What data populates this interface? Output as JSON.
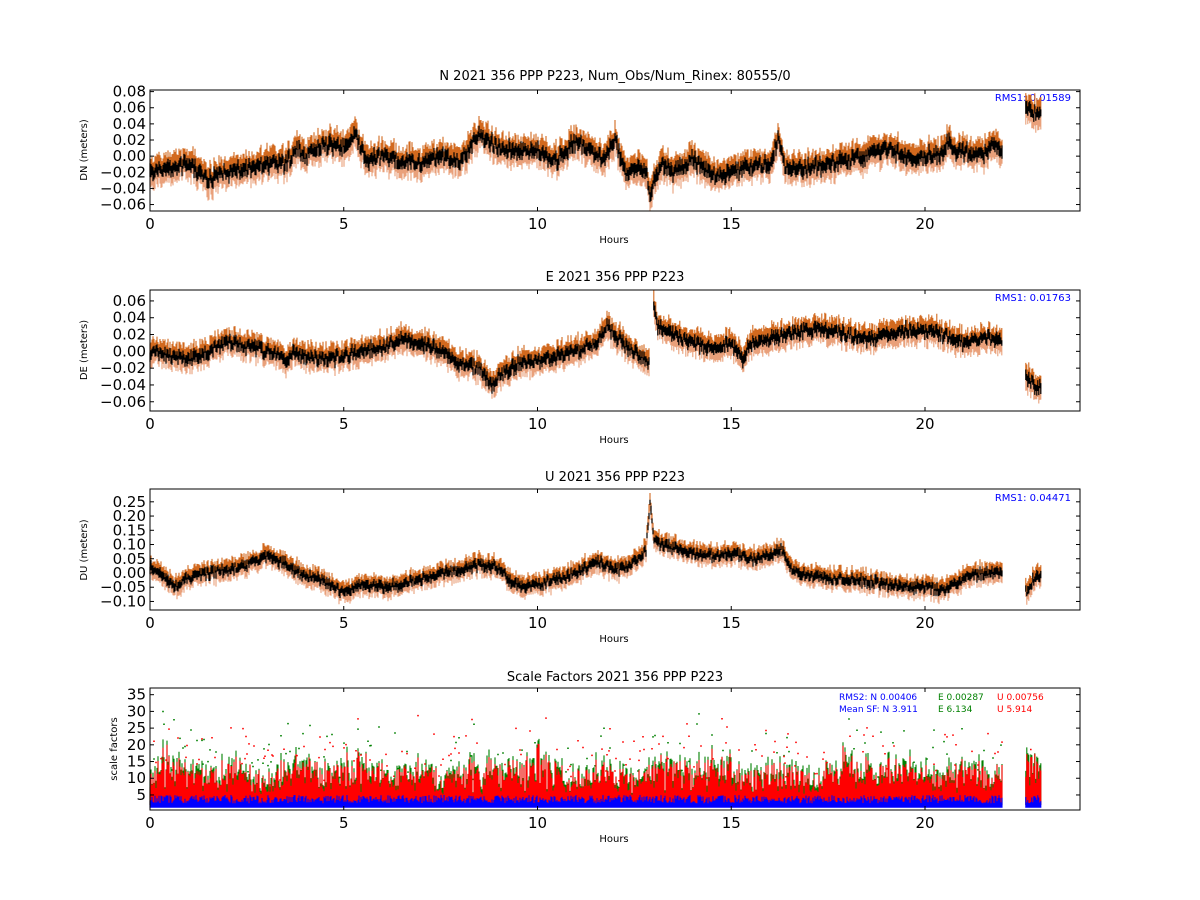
{
  "colors": {
    "sigma_outer": "#d2691e",
    "sigma_inner": "#e9a07a",
    "position": "#000000",
    "rms_text": "#0000ff",
    "sf_N": "#0000ff",
    "sf_E": "#008000",
    "sf_U": "#ff0000"
  },
  "chart_data": [
    {
      "type": "scatter",
      "title": "N 2021 356 PPP  P223, Num_Obs/Num_Rinex: 80555/0",
      "xlabel": "Hours",
      "ylabel": "DN (meters)",
      "xlim": [
        0,
        24
      ],
      "ylim": [
        -0.068,
        0.082
      ],
      "xticks": [
        0,
        5,
        10,
        15,
        20
      ],
      "xtick_labels": [
        "0",
        "5",
        "10",
        "15",
        "20"
      ],
      "yticks": [
        -0.06,
        -0.04,
        -0.02,
        0.0,
        0.02,
        0.04,
        0.06,
        0.08
      ],
      "ytick_labels": [
        "−0.06",
        "−0.04",
        "−0.02",
        "0.00",
        "0.02",
        "0.04",
        "0.06",
        "0.08"
      ],
      "annotation": "RMS1:  0.01589",
      "band_half_width": 0.018,
      "noise": 0.006,
      "segments": [
        {
          "x": [
            0.0,
            0.5,
            1.0,
            1.5,
            2.0,
            2.5,
            3.0,
            3.5,
            3.8,
            4.0,
            4.5,
            5.0,
            5.3,
            5.6,
            6.0,
            6.5,
            7.0,
            7.5,
            8.0,
            8.5,
            9.0,
            9.5,
            10.0,
            10.5,
            11.0,
            11.3,
            11.6,
            11.8,
            12.0,
            12.3,
            12.6,
            12.8,
            12.9,
            13.2,
            13.5,
            14.0,
            14.3,
            14.6,
            15.0,
            15.5,
            16.0,
            16.2,
            16.4,
            17.0,
            17.5,
            18.0,
            18.5,
            19.0,
            19.5,
            20.0,
            20.4,
            20.6,
            20.8,
            21.0,
            21.5,
            21.8,
            22.0
          ],
          "y": [
            -0.02,
            -0.015,
            -0.01,
            -0.03,
            -0.02,
            -0.015,
            -0.01,
            -0.01,
            0.01,
            0.0,
            0.015,
            0.01,
            0.025,
            -0.005,
            0.0,
            -0.005,
            -0.01,
            0.0,
            -0.005,
            0.025,
            0.01,
            0.005,
            0.005,
            -0.005,
            0.02,
            0.005,
            0.0,
            0.0,
            0.02,
            -0.025,
            -0.015,
            -0.02,
            -0.045,
            -0.01,
            -0.02,
            -0.005,
            -0.015,
            -0.025,
            -0.02,
            -0.015,
            -0.01,
            0.02,
            -0.015,
            -0.015,
            -0.01,
            -0.005,
            0.0,
            0.01,
            0.0,
            0.0,
            0.0,
            0.02,
            0.005,
            0.005,
            0.0,
            0.015,
            0.005
          ]
        },
        {
          "x": [
            22.6,
            22.8,
            23.0
          ],
          "y": [
            0.065,
            0.055,
            0.05
          ]
        }
      ]
    },
    {
      "type": "scatter",
      "title": "E 2021 356 PPP  P223",
      "xlabel": "Hours",
      "ylabel": "DE (meters)",
      "xlim": [
        0,
        24
      ],
      "ylim": [
        -0.071,
        0.073
      ],
      "xticks": [
        0,
        5,
        10,
        15,
        20
      ],
      "xtick_labels": [
        "0",
        "5",
        "10",
        "15",
        "20"
      ],
      "yticks": [
        -0.06,
        -0.04,
        -0.02,
        0.0,
        0.02,
        0.04,
        0.06
      ],
      "ytick_labels": [
        "−0.06",
        "−0.04",
        "−0.02",
        "0.00",
        "0.02",
        "0.04",
        "0.06"
      ],
      "annotation": "RMS1:  0.01763",
      "band_half_width": 0.015,
      "noise": 0.005,
      "segments": [
        {
          "x": [
            0.0,
            0.5,
            1.0,
            1.5,
            2.0,
            2.5,
            3.0,
            3.5,
            3.7,
            4.0,
            4.5,
            5.0,
            5.5,
            6.0,
            6.5,
            7.0,
            7.5,
            8.0,
            8.5,
            8.8,
            9.0,
            9.5,
            10.0,
            10.5,
            11.0,
            11.5,
            11.8,
            12.0,
            12.3,
            12.6,
            12.9
          ],
          "y": [
            0.0,
            -0.005,
            -0.01,
            0.0,
            0.01,
            0.005,
            0.0,
            -0.01,
            0.0,
            -0.005,
            -0.01,
            -0.005,
            0.0,
            0.005,
            0.015,
            0.01,
            0.0,
            -0.015,
            -0.02,
            -0.04,
            -0.03,
            -0.015,
            -0.01,
            -0.005,
            0.0,
            0.01,
            0.03,
            0.02,
            0.005,
            -0.005,
            -0.015
          ]
        },
        {
          "x": [
            13.0,
            13.1,
            13.5,
            14.0,
            14.5,
            15.0,
            15.3,
            15.5,
            16.0,
            16.5,
            17.0,
            17.5,
            18.0,
            18.5,
            19.0,
            19.5,
            20.0,
            20.5,
            21.0,
            21.5,
            22.0
          ],
          "y": [
            0.058,
            0.03,
            0.02,
            0.01,
            0.005,
            0.01,
            -0.01,
            0.01,
            0.015,
            0.02,
            0.025,
            0.025,
            0.02,
            0.015,
            0.02,
            0.025,
            0.025,
            0.02,
            0.01,
            0.015,
            0.015
          ]
        },
        {
          "x": [
            22.6,
            22.8,
            23.0
          ],
          "y": [
            -0.03,
            -0.04,
            -0.045
          ]
        }
      ]
    },
    {
      "type": "scatter",
      "title": "U 2021 356 PPP  P223",
      "xlabel": "Hours",
      "ylabel": "DU (meters)",
      "xlim": [
        0,
        24
      ],
      "ylim": [
        -0.13,
        0.295
      ],
      "xticks": [
        0,
        5,
        10,
        15,
        20
      ],
      "xtick_labels": [
        "0",
        "5",
        "10",
        "15",
        "20"
      ],
      "yticks": [
        -0.1,
        -0.05,
        0.0,
        0.05,
        0.1,
        0.15,
        0.2,
        0.25
      ],
      "ytick_labels": [
        "−0.10",
        "−0.05",
        "0.00",
        "0.05",
        "0.10",
        "0.15",
        "0.20",
        "0.25"
      ],
      "annotation": "RMS1:  0.04471",
      "band_half_width": 0.035,
      "noise": 0.012,
      "segments": [
        {
          "x": [
            0.0,
            0.3,
            0.6,
            1.0,
            1.5,
            2.0,
            2.5,
            3.0,
            3.5,
            4.0,
            4.5,
            5.0,
            5.5,
            6.0,
            6.5,
            7.0,
            7.5,
            8.0,
            8.5,
            9.0,
            9.3,
            9.6,
            10.0,
            10.5,
            11.0,
            11.5,
            12.0,
            12.3,
            12.6,
            12.8,
            12.9,
            13.0,
            13.2,
            13.5,
            14.0,
            14.5,
            15.0,
            15.5,
            16.0,
            16.3,
            16.6,
            17.0,
            17.5,
            18.0,
            18.5,
            19.0,
            19.5,
            20.0,
            20.5,
            21.0,
            21.5,
            22.0
          ],
          "y": [
            0.02,
            0.0,
            -0.05,
            -0.02,
            0.0,
            0.01,
            0.03,
            0.06,
            0.03,
            -0.01,
            -0.03,
            -0.07,
            -0.04,
            -0.05,
            -0.04,
            -0.02,
            0.0,
            0.01,
            0.03,
            0.02,
            -0.03,
            -0.05,
            -0.04,
            -0.02,
            0.0,
            0.04,
            0.01,
            0.02,
            0.05,
            0.08,
            0.25,
            0.12,
            0.1,
            0.09,
            0.07,
            0.06,
            0.07,
            0.05,
            0.06,
            0.08,
            0.01,
            -0.01,
            -0.02,
            -0.02,
            -0.03,
            -0.04,
            -0.05,
            -0.05,
            -0.06,
            -0.02,
            0.0,
            0.0
          ]
        },
        {
          "x": [
            22.6,
            22.8,
            23.0
          ],
          "y": [
            -0.07,
            -0.02,
            -0.01
          ]
        }
      ]
    },
    {
      "type": "scatter",
      "title": "Scale Factors 2021 356 PPP  P223",
      "xlabel": "Hours",
      "ylabel": "scale factors",
      "xlim": [
        0,
        24
      ],
      "ylim": [
        0.5,
        37
      ],
      "xticks": [
        0,
        5,
        10,
        15,
        20
      ],
      "xtick_labels": [
        "0",
        "5",
        "10",
        "15",
        "20"
      ],
      "yticks": [
        5,
        10,
        15,
        20,
        25,
        30,
        35
      ],
      "ytick_labels": [
        "5",
        "10",
        "15",
        "20",
        "25",
        "30",
        "35"
      ],
      "rms_line": {
        "label": "RMS2: N  0.00406",
        "e": "E  0.00287",
        "u": "U  0.00756"
      },
      "mean_line": {
        "label": "Mean SF: N   3.911",
        "e": "E   6.134",
        "u": "U   5.914"
      },
      "series": [
        {
          "name": "N",
          "mean": 3.911
        },
        {
          "name": "E",
          "mean": 6.134
        },
        {
          "name": "U",
          "mean": 5.914
        }
      ],
      "segments_hours": [
        [
          0.0,
          22.0
        ],
        [
          22.6,
          23.0
        ]
      ]
    }
  ]
}
